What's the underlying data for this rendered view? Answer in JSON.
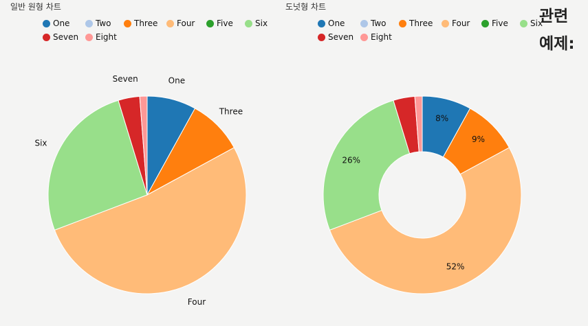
{
  "page": {
    "heading_line1": "관련",
    "heading_line2": "예제:"
  },
  "chart_data": [
    {
      "type": "pie",
      "title": "일반 원형 차트",
      "categories": [
        "One",
        "Two",
        "Three",
        "Four",
        "Five",
        "Six",
        "Seven",
        "Eight"
      ],
      "values": [
        8,
        0,
        9,
        52,
        0,
        26,
        3.5,
        1.2
      ],
      "colors": [
        "#1f77b4",
        "#aec7e8",
        "#ff7f0e",
        "#ffbb78",
        "#2ca02c",
        "#98df8a",
        "#d62728",
        "#ff9896"
      ],
      "slice_labels": [
        "One",
        "",
        "Three",
        "Four",
        "",
        "Six",
        "Seven",
        ""
      ],
      "legend": "top"
    },
    {
      "type": "pie",
      "donut": true,
      "title": "도넛형 차트",
      "categories": [
        "One",
        "Two",
        "Three",
        "Four",
        "Five",
        "Six",
        "Seven",
        "Eight"
      ],
      "values": [
        8,
        0,
        9,
        52,
        0,
        26,
        3.5,
        1.2
      ],
      "colors": [
        "#1f77b4",
        "#aec7e8",
        "#ff7f0e",
        "#ffbb78",
        "#2ca02c",
        "#98df8a",
        "#d62728",
        "#ff9896"
      ],
      "slice_labels": [
        "8%",
        "",
        "9%",
        "52%",
        "",
        "26%",
        "",
        ""
      ],
      "legend": "top"
    }
  ]
}
